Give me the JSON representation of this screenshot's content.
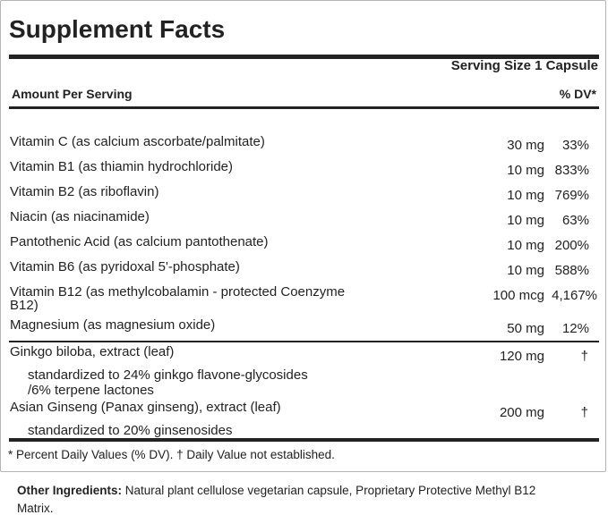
{
  "title": "Supplement Facts",
  "serving_size": "Serving Size 1 Capsule",
  "amount_per_serving": "Amount Per Serving",
  "dv_header": "% DV*",
  "nutrients": [
    {
      "name": "Vitamin C (as calcium ascorbate/palmitate)",
      "amount": "30 mg",
      "dv": "33%"
    },
    {
      "name": "Vitamin B1 (as thiamin hydrochloride)",
      "amount": "10 mg",
      "dv": "833%"
    },
    {
      "name": "Vitamin B2 (as riboflavin)",
      "amount": "10 mg",
      "dv": "769%"
    },
    {
      "name": "Niacin (as niacinamide)",
      "amount": "10 mg",
      "dv": "63%"
    },
    {
      "name": "Pantothenic Acid (as calcium pantothenate)",
      "amount": "10 mg",
      "dv": "200%"
    },
    {
      "name": "Vitamin B6 (as pyridoxal 5'-phosphate)",
      "amount": "10 mg",
      "dv": "588%"
    },
    {
      "name": "Vitamin B12 (as methylcobalamin - protected Coenzyme",
      "name2": "B12)",
      "amount": "100 mcg",
      "dv": "4,167%"
    },
    {
      "name": "Magnesium (as magnesium oxide)",
      "amount": "50 mg",
      "dv": "12%"
    }
  ],
  "herbals": [
    {
      "name": "Ginkgo biloba, extract (leaf)",
      "amount": "120 mg",
      "dv": "†",
      "sub": "standardized to 24% ginkgo flavone-glycosides",
      "sub2": "/6% terpene lactones"
    },
    {
      "name": "Asian Ginseng (Panax ginseng), extract (leaf)",
      "amount": "200 mg",
      "dv": "†",
      "sub": "standardized to 20% ginsenosides"
    }
  ],
  "footnote": "* Percent Daily Values (% DV). † Daily Value not established.",
  "other_label": "Other Ingredients:",
  "other_text": "Natural plant cellulose vegetarian capsule, Proprietary Protective Methyl B12",
  "other_text2": "Matrix."
}
